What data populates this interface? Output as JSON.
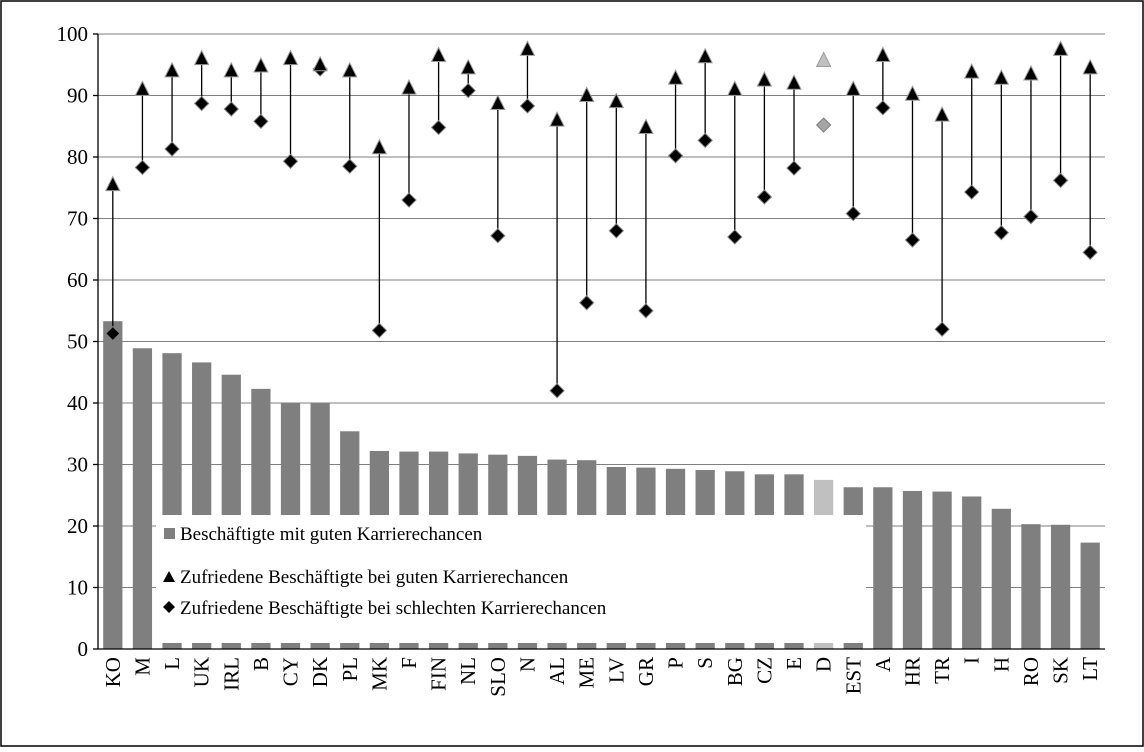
{
  "chart_data": {
    "type": "bar",
    "categories": [
      "KO",
      "M",
      "L",
      "UK",
      "IRL",
      "B",
      "CY",
      "DK",
      "PL",
      "MK",
      "F",
      "FIN",
      "NL",
      "SLO",
      "N",
      "AL",
      "ME",
      "LV",
      "GR",
      "P",
      "S",
      "BG",
      "CZ",
      "E",
      "D",
      "EST",
      "A",
      "HR",
      "TR",
      "I",
      "H",
      "RO",
      "SK",
      "LT"
    ],
    "highlighted_category": "D",
    "series": [
      {
        "name": "Beschäftigte mit guten Karrierechancen",
        "kind": "bar",
        "values": [
          53.3,
          48.9,
          48.1,
          46.6,
          44.6,
          42.3,
          40.0,
          40.0,
          35.4,
          32.2,
          32.1,
          32.1,
          31.8,
          31.6,
          31.4,
          30.8,
          30.7,
          29.6,
          29.5,
          29.3,
          29.1,
          28.9,
          28.4,
          28.4,
          27.5,
          26.3,
          26.3,
          25.7,
          25.6,
          24.8,
          22.8,
          20.3,
          20.2,
          17.3
        ]
      },
      {
        "name": "Zufriedene Beschäftigte bei guten Karrierechancen",
        "kind": "triangle",
        "values": [
          75.5,
          91.0,
          94.0,
          96.0,
          94.0,
          94.8,
          96.0,
          95.0,
          94.0,
          81.5,
          91.2,
          96.5,
          94.5,
          88.7,
          97.5,
          86.0,
          90.0,
          89.0,
          84.8,
          92.8,
          96.3,
          91.0,
          92.5,
          92.0,
          95.7,
          91.0,
          96.5,
          90.2,
          86.8,
          93.8,
          92.8,
          93.5,
          97.5,
          94.5
        ]
      },
      {
        "name": "Zufriedene Beschäftigte bei schlechten Karrierechancen",
        "kind": "diamond",
        "values": [
          51.3,
          78.3,
          81.3,
          88.7,
          87.8,
          85.8,
          79.3,
          94.3,
          78.5,
          51.8,
          73.0,
          84.8,
          90.8,
          67.2,
          88.3,
          42.0,
          56.3,
          68.0,
          55.0,
          80.2,
          82.7,
          67.0,
          73.5,
          78.2,
          85.2,
          70.8,
          88.0,
          66.5,
          52.0,
          74.3,
          67.7,
          70.3,
          76.2,
          64.5
        ]
      }
    ],
    "ylim": [
      0,
      100
    ],
    "yticks": [
      0,
      10,
      20,
      30,
      40,
      50,
      60,
      70,
      80,
      90,
      100
    ],
    "grid": true,
    "legend_placement": "bottom-left",
    "colors": {
      "bar": "#7f7f7f",
      "bar_highlight": "#c0c0c0",
      "marker": "#000000",
      "marker_highlight_triangle": "#c0c0c0",
      "marker_highlight_diamond": "#a6a6a6",
      "gridline": "#7f7f7f",
      "axis": "#000000"
    }
  }
}
